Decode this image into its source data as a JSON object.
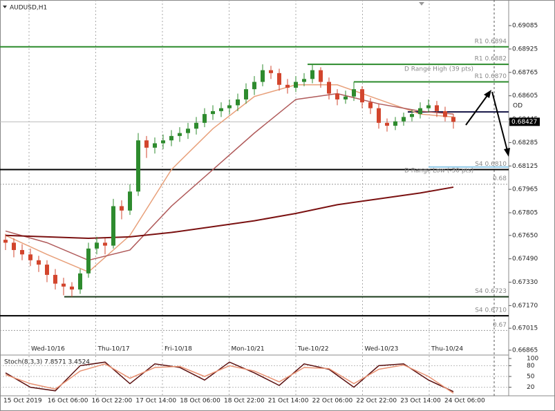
{
  "chart_data": {
    "type": "candlestick",
    "title": "AUDUSD,H1",
    "up_color": "#2e8b2e",
    "down_color": "#d2452d",
    "ylim": [
      0.66841,
      0.69246
    ],
    "yticks": [
      0.69085,
      0.68925,
      0.68765,
      0.68605,
      0.68445,
      0.68285,
      0.68125,
      0.67965,
      0.67805,
      {
        "value": 0.6765,
        "label": "0.67650"
      },
      {
        "value": 0.6749,
        "label": "0.67490"
      },
      {
        "value": 0.6733,
        "label": "0.67330"
      },
      {
        "value": 0.6717,
        "label": "0.67170"
      },
      0.67015,
      0.66865
    ],
    "last_price": 0.68427,
    "ohlc": [
      [
        0.6762,
        0.6766,
        0.6755,
        0.676
      ],
      [
        0.676,
        0.6763,
        0.675,
        0.6755
      ],
      [
        0.6755,
        0.6759,
        0.6748,
        0.6752
      ],
      [
        0.6752,
        0.6756,
        0.6744,
        0.6748
      ],
      [
        0.6748,
        0.6751,
        0.674,
        0.6745
      ],
      [
        0.6745,
        0.6748,
        0.6733,
        0.6738
      ],
      [
        0.6738,
        0.6742,
        0.6728,
        0.6732
      ],
      [
        0.6732,
        0.6736,
        0.6724,
        0.673
      ],
      [
        0.673,
        0.6733,
        0.6723,
        0.6728
      ],
      [
        0.6728,
        0.6742,
        0.6725,
        0.6739
      ],
      [
        0.6739,
        0.676,
        0.6736,
        0.6756
      ],
      [
        0.6756,
        0.6764,
        0.6752,
        0.676
      ],
      [
        0.676,
        0.6763,
        0.6752,
        0.6758
      ],
      [
        0.6758,
        0.679,
        0.6756,
        0.6785
      ],
      [
        0.6785,
        0.6789,
        0.6776,
        0.6782
      ],
      [
        0.6782,
        0.68,
        0.6779,
        0.6795
      ],
      [
        0.6795,
        0.6835,
        0.6792,
        0.683
      ],
      [
        0.683,
        0.6833,
        0.6818,
        0.6825
      ],
      [
        0.6825,
        0.6832,
        0.6821,
        0.6828
      ],
      [
        0.6828,
        0.6834,
        0.6824,
        0.683
      ],
      [
        0.683,
        0.6837,
        0.6826,
        0.6833
      ],
      [
        0.6833,
        0.6839,
        0.6829,
        0.6835
      ],
      [
        0.6835,
        0.6842,
        0.6831,
        0.6838
      ],
      [
        0.6838,
        0.6846,
        0.6834,
        0.6842
      ],
      [
        0.6842,
        0.6852,
        0.6839,
        0.6848
      ],
      [
        0.6848,
        0.6854,
        0.6844,
        0.685
      ],
      [
        0.685,
        0.6856,
        0.6846,
        0.6852
      ],
      [
        0.6852,
        0.6858,
        0.6848,
        0.6854
      ],
      [
        0.6854,
        0.6862,
        0.685,
        0.6858
      ],
      [
        0.6858,
        0.6869,
        0.6855,
        0.6865
      ],
      [
        0.6865,
        0.6874,
        0.6861,
        0.687
      ],
      [
        0.687,
        0.6882,
        0.6867,
        0.6878
      ],
      [
        0.6878,
        0.6881,
        0.6872,
        0.6876
      ],
      [
        0.6876,
        0.6879,
        0.6864,
        0.6868
      ],
      [
        0.6868,
        0.6872,
        0.6862,
        0.6866
      ],
      [
        0.6866,
        0.6874,
        0.6863,
        0.687
      ],
      [
        0.687,
        0.6876,
        0.6867,
        0.6872
      ],
      [
        0.6872,
        0.6882,
        0.6869,
        0.6878
      ],
      [
        0.6878,
        0.688,
        0.6866,
        0.687
      ],
      [
        0.687,
        0.6873,
        0.6858,
        0.6862
      ],
      [
        0.6862,
        0.6865,
        0.6854,
        0.6858
      ],
      [
        0.6858,
        0.6864,
        0.6855,
        0.686
      ],
      [
        0.686,
        0.687,
        0.6857,
        0.6865
      ],
      [
        0.6865,
        0.6867,
        0.6852,
        0.6856
      ],
      [
        0.6856,
        0.6859,
        0.6848,
        0.6852
      ],
      [
        0.6852,
        0.6855,
        0.6838,
        0.6842
      ],
      [
        0.6842,
        0.6845,
        0.6836,
        0.684
      ],
      [
        0.684,
        0.6846,
        0.6837,
        0.6843
      ],
      [
        0.6843,
        0.6849,
        0.684,
        0.6846
      ],
      [
        0.6846,
        0.6851,
        0.6843,
        0.6848
      ],
      [
        0.6848,
        0.6856,
        0.6845,
        0.6852
      ],
      [
        0.6852,
        0.6858,
        0.6849,
        0.6854
      ],
      [
        0.6854,
        0.6857,
        0.6846,
        0.685
      ],
      [
        0.685,
        0.6853,
        0.6843,
        0.6846
      ],
      [
        0.6846,
        0.6848,
        0.6838,
        0.68427
      ]
    ],
    "moving_averages": {
      "x": [
        0,
        5,
        10,
        15,
        20,
        25,
        30,
        35,
        40,
        45,
        50,
        54
      ],
      "series": [
        {
          "color": "#e8a07a",
          "values": [
            0.6765,
            0.6752,
            0.674,
            0.6765,
            0.681,
            0.6838,
            0.686,
            0.6868,
            0.6868,
            0.6858,
            0.6848,
            0.6846
          ]
        },
        {
          "color": "#b05a5a",
          "values": [
            0.6768,
            0.676,
            0.6748,
            0.6755,
            0.6785,
            0.681,
            0.6835,
            0.6858,
            0.6862,
            0.6855,
            0.685,
            0.6848
          ]
        },
        {
          "color": "#7a1010",
          "values": [
            0.6765,
            0.6764,
            0.6763,
            0.6764,
            0.6767,
            0.6771,
            0.6775,
            0.678,
            0.6786,
            0.679,
            0.6794,
            0.6798
          ]
        }
      ]
    },
    "levels": [
      {
        "label": "R1 0.6894",
        "value": 0.6894,
        "color": "#2a8a2a"
      },
      {
        "label": "R1 0.6882",
        "value": 0.6882,
        "color": "#2a8a2a"
      },
      {
        "label": "R1 0.6870",
        "value": 0.687,
        "color": "#2a8a2a"
      },
      {
        "label": "OD",
        "value": 0.68495,
        "color": "#1a1a4a"
      },
      {
        "label": "S4 0.6810",
        "value": 0.681,
        "color": "#000000"
      },
      {
        "label": "0.68",
        "value": 0.68,
        "color": "#999999",
        "style": "dotted"
      },
      {
        "label": "S4 0.6723",
        "value": 0.6723,
        "color": "#1a3a1a"
      },
      {
        "label": "S4 0.6710",
        "value": 0.671,
        "color": "#000000"
      },
      {
        "label": "0.67",
        "value": 0.67,
        "color": "#999999",
        "style": "dotted"
      },
      {
        "value": 0.68118,
        "color": "#8ec8e8"
      }
    ],
    "annotations": [
      "D Range High (39 pts)",
      "D Range Low (-30 pts)"
    ],
    "day_labels": [
      "Wed-10/16",
      "Thu-10/17",
      "Fri-10/18",
      "Mon-10/21",
      "Tue-10/22",
      "Wed-10/23",
      "Thu-10/24"
    ],
    "time_labels": [
      "15 Oct 2019",
      "16 Oct 06:00",
      "16 Oct 22:00",
      "17 Oct 14:00",
      "18 Oct 06:00",
      "18 Oct 22:00",
      "21 Oct 14:00",
      "22 Oct 06:00",
      "22 Oct 22:00",
      "23 Oct 14:00",
      "24 Oct 06:00"
    ],
    "oscillator": {
      "title": "Stoch(8,3,3) 7.8571 3.4524",
      "ylim": [
        0,
        100
      ],
      "yticks": [
        100,
        80,
        50,
        20
      ],
      "x": [
        0,
        3,
        6,
        9,
        12,
        15,
        18,
        21,
        24,
        27,
        30,
        33,
        36,
        39,
        42,
        45,
        48,
        51,
        54
      ],
      "series": [
        {
          "color": "#5a0f0f",
          "values": [
            60,
            20,
            10,
            80,
            90,
            30,
            85,
            75,
            40,
            90,
            60,
            25,
            85,
            70,
            20,
            80,
            85,
            40,
            7.8571
          ]
        },
        {
          "color": "#e89070",
          "values": [
            55,
            30,
            15,
            65,
            85,
            45,
            75,
            78,
            50,
            80,
            65,
            35,
            75,
            72,
            30,
            70,
            82,
            50,
            3.4524
          ]
        }
      ]
    }
  }
}
